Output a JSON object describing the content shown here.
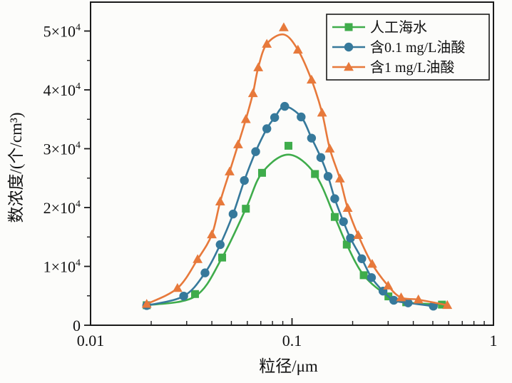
{
  "figure": {
    "background": "#fcfcfa",
    "frame_color": "#1a1a1a"
  },
  "chart_data": {
    "type": "line",
    "title": "",
    "x_axis": {
      "label": "粒径/μm",
      "scale": "log",
      "min": 0.01,
      "max": 1,
      "major_ticks": [
        {
          "value": 0.01,
          "label": "0.01"
        },
        {
          "value": 0.1,
          "label": "0.1"
        },
        {
          "value": 1,
          "label": "1"
        }
      ]
    },
    "y_axis": {
      "label": "数浓度/(个/cm³)",
      "min": 0,
      "max": 55000,
      "major_ticks": [
        {
          "value": 0,
          "base": "0",
          "exp": ""
        },
        {
          "value": 10000,
          "base": "1×10",
          "exp": "4"
        },
        {
          "value": 20000,
          "base": "2×10",
          "exp": "4"
        },
        {
          "value": 30000,
          "base": "3×10",
          "exp": "4"
        },
        {
          "value": 40000,
          "base": "4×10",
          "exp": "4"
        },
        {
          "value": 50000,
          "base": "5×10",
          "exp": "4"
        }
      ],
      "minor_tick_values": [
        5000,
        15000,
        25000,
        35000,
        45000
      ]
    },
    "legend": {
      "position": "top-right",
      "entries": [
        "人工海水",
        "含0.1 mg/L油酸",
        "含1 mg/L油酸"
      ]
    },
    "series": [
      {
        "id": "artificial-seawater",
        "name": "人工海水",
        "color": "#3fac4b",
        "marker": "square",
        "points": [
          [
            0.019,
            3400
          ],
          [
            0.033,
            5300
          ],
          [
            0.045,
            11500
          ],
          [
            0.059,
            19800
          ],
          [
            0.071,
            25900
          ],
          [
            0.096,
            30500
          ],
          [
            0.13,
            25700
          ],
          [
            0.163,
            18400
          ],
          [
            0.187,
            13700
          ],
          [
            0.227,
            8500
          ],
          [
            0.301,
            4900
          ],
          [
            0.369,
            3900
          ],
          [
            0.555,
            3500
          ]
        ],
        "curve_points": [
          [
            0.019,
            3400
          ],
          [
            0.033,
            4900
          ],
          [
            0.045,
            11500
          ],
          [
            0.059,
            19800
          ],
          [
            0.071,
            25900
          ],
          [
            0.096,
            29000
          ],
          [
            0.13,
            25700
          ],
          [
            0.163,
            18400
          ],
          [
            0.187,
            13700
          ],
          [
            0.227,
            8500
          ],
          [
            0.301,
            4900
          ],
          [
            0.369,
            3900
          ],
          [
            0.555,
            3500
          ]
        ]
      },
      {
        "id": "oleic-acid-0.1mgL",
        "name": "含0.1 mg/L油酸",
        "color": "#36799b",
        "marker": "circle",
        "points": [
          [
            0.019,
            3350
          ],
          [
            0.029,
            4950
          ],
          [
            0.037,
            8900
          ],
          [
            0.044,
            13700
          ],
          [
            0.051,
            18900
          ],
          [
            0.058,
            24600
          ],
          [
            0.066,
            29500
          ],
          [
            0.075,
            33400
          ],
          [
            0.082,
            35300
          ],
          [
            0.092,
            37200
          ],
          [
            0.111,
            35400
          ],
          [
            0.125,
            31800
          ],
          [
            0.139,
            28500
          ],
          [
            0.151,
            25300
          ],
          [
            0.163,
            21500
          ],
          [
            0.18,
            17600
          ],
          [
            0.195,
            14800
          ],
          [
            0.222,
            11300
          ],
          [
            0.248,
            8100
          ],
          [
            0.283,
            5800
          ],
          [
            0.32,
            4250
          ],
          [
            0.377,
            3800
          ],
          [
            0.503,
            3250
          ]
        ]
      },
      {
        "id": "oleic-acid-1mgL",
        "name": "含1 mg/L油酸",
        "color": "#e7793b",
        "marker": "triangle",
        "points": [
          [
            0.019,
            3600
          ],
          [
            0.027,
            6300
          ],
          [
            0.034,
            11200
          ],
          [
            0.04,
            15400
          ],
          [
            0.044,
            21000
          ],
          [
            0.049,
            26100
          ],
          [
            0.054,
            30700
          ],
          [
            0.059,
            35000
          ],
          [
            0.064,
            39400
          ],
          [
            0.068,
            43800
          ],
          [
            0.075,
            47800
          ],
          [
            0.091,
            50600
          ],
          [
            0.107,
            46800
          ],
          [
            0.125,
            41700
          ],
          [
            0.141,
            36100
          ],
          [
            0.154,
            30000
          ],
          [
            0.173,
            24900
          ],
          [
            0.189,
            19900
          ],
          [
            0.213,
            15300
          ],
          [
            0.25,
            10400
          ],
          [
            0.3,
            6700
          ],
          [
            0.348,
            4700
          ],
          [
            0.424,
            4350
          ],
          [
            0.59,
            3400
          ]
        ],
        "curve_points": [
          [
            0.019,
            3600
          ],
          [
            0.027,
            6300
          ],
          [
            0.034,
            11200
          ],
          [
            0.04,
            15400
          ],
          [
            0.044,
            21000
          ],
          [
            0.049,
            26100
          ],
          [
            0.054,
            30700
          ],
          [
            0.059,
            35000
          ],
          [
            0.064,
            39400
          ],
          [
            0.068,
            43800
          ],
          [
            0.075,
            47800
          ],
          [
            0.091,
            49400
          ],
          [
            0.107,
            46800
          ],
          [
            0.125,
            41700
          ],
          [
            0.141,
            36100
          ],
          [
            0.154,
            30000
          ],
          [
            0.173,
            24900
          ],
          [
            0.189,
            19900
          ],
          [
            0.213,
            15300
          ],
          [
            0.25,
            10400
          ],
          [
            0.3,
            6700
          ],
          [
            0.348,
            4700
          ],
          [
            0.424,
            4350
          ],
          [
            0.59,
            3400
          ]
        ]
      }
    ]
  }
}
